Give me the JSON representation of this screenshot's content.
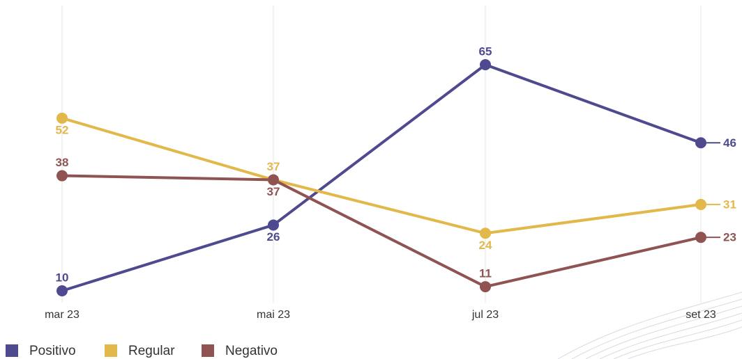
{
  "chart_data": {
    "type": "line",
    "categories": [
      "mar 23",
      "mai 23",
      "jul 23",
      "set 23"
    ],
    "series": [
      {
        "name": "Positivo",
        "color": "#4f4a8f",
        "values": [
          10,
          26,
          65,
          46
        ]
      },
      {
        "name": "Regular",
        "color": "#e2b84a",
        "values": [
          52,
          37,
          24,
          31
        ]
      },
      {
        "name": "Negativo",
        "color": "#8f5352",
        "values": [
          38,
          37,
          11,
          23
        ]
      }
    ],
    "grid": true,
    "legend": "bottom-left"
  }
}
